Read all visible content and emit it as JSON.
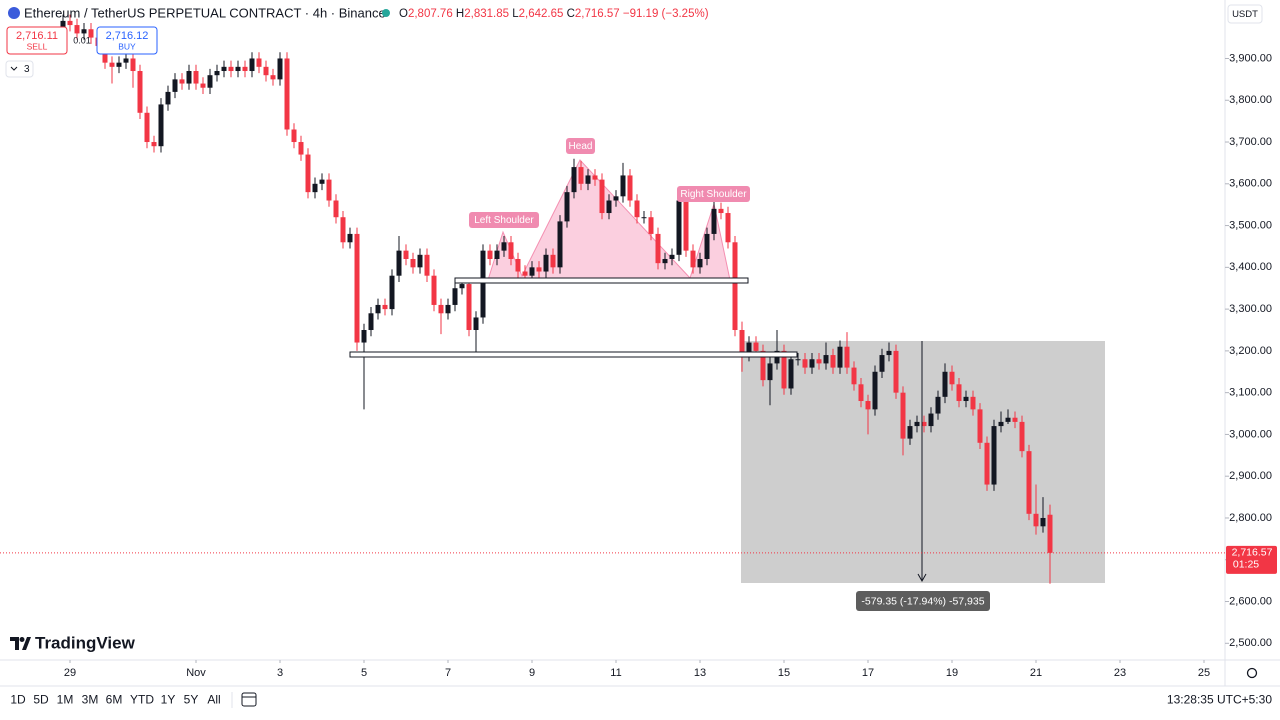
{
  "ui": {
    "sell_price": "2,716.11",
    "sell_label": "SELL",
    "spread": "0.01",
    "buy_price": "2,716.12",
    "buy_label": "BUY",
    "indicator_count": "3",
    "currency": "USDT",
    "logo": "TradingView",
    "ranges": [
      "1D",
      "5D",
      "1M",
      "3M",
      "6M",
      "YTD",
      "1Y",
      "5Y",
      "All"
    ],
    "clock": "13:28:35 UTC+5:30"
  },
  "chart_data": {
    "type": "candlestick",
    "title": "Ethereum / TetherUS PERPETUAL CONTRACT · 4h · Binance",
    "ohlc_legend": [
      {
        "key": "O",
        "value": "2,807.76"
      },
      {
        "key": "H",
        "value": "2,831.85"
      },
      {
        "key": "L",
        "value": "2,642.65"
      },
      {
        "key": "C",
        "value": "2,716.57"
      }
    ],
    "change": "−91.19 (−3.25%)",
    "annotations": [
      "Left Shoulder",
      "Head",
      "Right Shoulder"
    ],
    "measure_label": "-579.35 (-17.94%) -57,935",
    "price_label": "2,716.57",
    "countdown": "01:25",
    "up_color": "#131722",
    "down_color": "#f23645",
    "xlim": [
      -40,
      660
    ],
    "xticks": [
      {
        "value": 0,
        "label": "29"
      },
      {
        "value": 72,
        "label": "Nov"
      },
      {
        "value": 120,
        "label": "3"
      },
      {
        "value": 168,
        "label": "5"
      },
      {
        "value": 216,
        "label": "7"
      },
      {
        "value": 264,
        "label": "9"
      },
      {
        "value": 312,
        "label": "11"
      },
      {
        "value": 360,
        "label": "13"
      },
      {
        "value": 408,
        "label": "15"
      },
      {
        "value": 456,
        "label": "17"
      },
      {
        "value": 504,
        "label": "19"
      },
      {
        "value": 552,
        "label": "21"
      },
      {
        "value": 600,
        "label": "23"
      },
      {
        "value": 648,
        "label": "25"
      }
    ],
    "ylim": [
      2460,
      4040
    ],
    "yticks": [
      {
        "value": 2500,
        "label": "2,500.00"
      },
      {
        "value": 2600,
        "label": "2,600.00"
      },
      {
        "value": 2700,
        "label": "2,700.00"
      },
      {
        "value": 2800,
        "label": "2,800.00"
      },
      {
        "value": 2900,
        "label": "2,900.00"
      },
      {
        "value": 3000,
        "label": "3,000.00"
      },
      {
        "value": 3100,
        "label": "3,100.00"
      },
      {
        "value": 3200,
        "label": "3,200.00"
      },
      {
        "value": 3300,
        "label": "3,300.00"
      },
      {
        "value": 3400,
        "label": "3,400.00"
      },
      {
        "value": 3500,
        "label": "3,500.00"
      },
      {
        "value": 3600,
        "label": "3,600.00"
      },
      {
        "value": 3700,
        "label": "3,700.00"
      },
      {
        "value": 3800,
        "label": "3,800.00"
      },
      {
        "value": 3900,
        "label": "3,900.00"
      }
    ],
    "grid": false,
    "x": [
      -4,
      0,
      4,
      8,
      12,
      16,
      20,
      24,
      28,
      32,
      36,
      40,
      44,
      48,
      52,
      56,
      60,
      64,
      68,
      72,
      76,
      80,
      84,
      88,
      92,
      96,
      100,
      104,
      108,
      112,
      116,
      120,
      124,
      128,
      132,
      136,
      140,
      144,
      148,
      152,
      156,
      160,
      164,
      168,
      172,
      176,
      180,
      184,
      188,
      192,
      196,
      200,
      204,
      208,
      212,
      216,
      220,
      224,
      228,
      232,
      236,
      240,
      244,
      248,
      252,
      256,
      260,
      264,
      268,
      272,
      276,
      280,
      284,
      288,
      292,
      296,
      300,
      304,
      308,
      312,
      316,
      320,
      324,
      328,
      332,
      336,
      340,
      344,
      348,
      352,
      356,
      360,
      364,
      368,
      372,
      376,
      380,
      384,
      388,
      392,
      396,
      400,
      404,
      408,
      412,
      416,
      420,
      424,
      428,
      432,
      436,
      440,
      444,
      448,
      452,
      456,
      460,
      464,
      468,
      472,
      476,
      480,
      484,
      488,
      492,
      496,
      500,
      504,
      508,
      512,
      516,
      520,
      524,
      528,
      532,
      536,
      540,
      544,
      548,
      552,
      556,
      560
    ],
    "open": [
      3970,
      3990,
      3980,
      3960,
      3970,
      3950,
      3930,
      3890,
      3880,
      3890,
      3900,
      3870,
      3770,
      3700,
      3690,
      3790,
      3820,
      3850,
      3840,
      3870,
      3840,
      3830,
      3860,
      3870,
      3880,
      3870,
      3880,
      3870,
      3900,
      3880,
      3860,
      3850,
      3900,
      3730,
      3700,
      3670,
      3580,
      3600,
      3610,
      3560,
      3520,
      3460,
      3480,
      3220,
      3250,
      3290,
      3310,
      3300,
      3380,
      3440,
      3420,
      3400,
      3430,
      3380,
      3310,
      3290,
      3310,
      3350,
      3360,
      3250,
      3280,
      3440,
      3420,
      3440,
      3460,
      3420,
      3390,
      3380,
      3400,
      3390,
      3430,
      3400,
      3510,
      3580,
      3640,
      3600,
      3620,
      3610,
      3530,
      3560,
      3570,
      3620,
      3560,
      3520,
      3520,
      3480,
      3410,
      3420,
      3430,
      3560,
      3440,
      3400,
      3420,
      3480,
      3540,
      3530,
      3460,
      3250,
      3190,
      3220,
      3200,
      3130,
      3170,
      3200,
      3110,
      3180,
      3180,
      3160,
      3180,
      3170,
      3190,
      3160,
      3210,
      3160,
      3120,
      3080,
      3060,
      3150,
      3190,
      3200,
      3100,
      2990,
      3020,
      3030,
      3020,
      3050,
      3090,
      3150,
      3120,
      3080,
      3090,
      3060,
      2980,
      2880,
      3020,
      3030,
      3040,
      3030,
      2960,
      2810,
      2780,
      2807.76
    ],
    "high": [
      4005,
      4005,
      3995,
      3985,
      3985,
      3965,
      3945,
      3905,
      3905,
      3915,
      3915,
      3885,
      3785,
      3715,
      3805,
      3835,
      3865,
      3865,
      3885,
      3885,
      3855,
      3875,
      3885,
      3895,
      3895,
      3895,
      3895,
      3915,
      3915,
      3895,
      3875,
      3915,
      3915,
      3745,
      3715,
      3685,
      3615,
      3625,
      3625,
      3575,
      3535,
      3495,
      3495,
      3265,
      3305,
      3325,
      3325,
      3395,
      3475,
      3455,
      3435,
      3445,
      3445,
      3395,
      3325,
      3325,
      3365,
      3375,
      3375,
      3295,
      3455,
      3455,
      3455,
      3475,
      3475,
      3435,
      3405,
      3415,
      3415,
      3445,
      3445,
      3525,
      3595,
      3660,
      3655,
      3635,
      3635,
      3625,
      3575,
      3585,
      3650,
      3635,
      3575,
      3535,
      3535,
      3495,
      3435,
      3445,
      3575,
      3575,
      3455,
      3435,
      3495,
      3570,
      3555,
      3545,
      3475,
      3270,
      3235,
      3235,
      3215,
      3185,
      3250,
      3215,
      3195,
      3195,
      3195,
      3195,
      3195,
      3220,
      3205,
      3225,
      3245,
      3175,
      3135,
      3095,
      3165,
      3205,
      3220,
      3215,
      3115,
      3035,
      3045,
      3045,
      3065,
      3105,
      3170,
      3165,
      3135,
      3105,
      3105,
      3075,
      2995,
      3035,
      3055,
      3060,
      3055,
      3045,
      2975,
      2880,
      2850,
      2831.85
    ],
    "low": [
      3955,
      3965,
      3945,
      3945,
      3935,
      3915,
      3875,
      3840,
      3865,
      3875,
      3830,
      3755,
      3685,
      3675,
      3675,
      3775,
      3805,
      3825,
      3825,
      3825,
      3815,
      3815,
      3845,
      3855,
      3855,
      3855,
      3855,
      3855,
      3865,
      3845,
      3835,
      3835,
      3715,
      3685,
      3655,
      3565,
      3565,
      3585,
      3545,
      3505,
      3445,
      3445,
      3200,
      3060,
      3235,
      3275,
      3285,
      3285,
      3365,
      3405,
      3385,
      3385,
      3365,
      3295,
      3240,
      3275,
      3295,
      3335,
      3235,
      3190,
      3265,
      3405,
      3405,
      3425,
      3405,
      3375,
      3365,
      3365,
      3375,
      3375,
      3385,
      3385,
      3495,
      3565,
      3585,
      3585,
      3595,
      3515,
      3515,
      3545,
      3555,
      3545,
      3505,
      3505,
      3465,
      3395,
      3395,
      3405,
      3415,
      3425,
      3385,
      3385,
      3405,
      3465,
      3515,
      3445,
      3235,
      3150,
      3175,
      3185,
      3115,
      3070,
      3155,
      3095,
      3095,
      3165,
      3145,
      3145,
      3155,
      3155,
      3145,
      3145,
      3145,
      3105,
      3065,
      3000,
      3045,
      3135,
      3175,
      3085,
      2950,
      2975,
      3005,
      3005,
      3005,
      3035,
      3075,
      3105,
      3065,
      3065,
      3045,
      2965,
      2865,
      2865,
      3005,
      3025,
      3015,
      2945,
      2795,
      2760,
      2765,
      2642.65
    ],
    "close": [
      3990,
      3980,
      3960,
      3970,
      3950,
      3930,
      3890,
      3880,
      3890,
      3900,
      3870,
      3770,
      3700,
      3690,
      3790,
      3820,
      3850,
      3840,
      3870,
      3840,
      3830,
      3860,
      3870,
      3880,
      3870,
      3880,
      3870,
      3900,
      3880,
      3860,
      3850,
      3900,
      3730,
      3700,
      3670,
      3580,
      3600,
      3610,
      3560,
      3520,
      3460,
      3480,
      3220,
      3250,
      3290,
      3310,
      3300,
      3380,
      3440,
      3420,
      3400,
      3430,
      3380,
      3310,
      3290,
      3310,
      3350,
      3360,
      3250,
      3280,
      3440,
      3420,
      3440,
      3460,
      3420,
      3390,
      3380,
      3400,
      3390,
      3430,
      3400,
      3510,
      3580,
      3640,
      3600,
      3620,
      3610,
      3530,
      3560,
      3570,
      3620,
      3560,
      3520,
      3520,
      3480,
      3410,
      3420,
      3430,
      3560,
      3440,
      3400,
      3420,
      3480,
      3540,
      3530,
      3460,
      3250,
      3190,
      3220,
      3200,
      3130,
      3170,
      3200,
      3110,
      3180,
      3180,
      3160,
      3180,
      3170,
      3190,
      3160,
      3210,
      3160,
      3120,
      3080,
      3060,
      3150,
      3190,
      3200,
      3100,
      2990,
      3020,
      3030,
      3020,
      3050,
      3090,
      3150,
      3120,
      3080,
      3090,
      3060,
      2980,
      2880,
      3020,
      3030,
      3040,
      3030,
      2960,
      2810,
      2780,
      2800,
      2716.57
    ]
  }
}
